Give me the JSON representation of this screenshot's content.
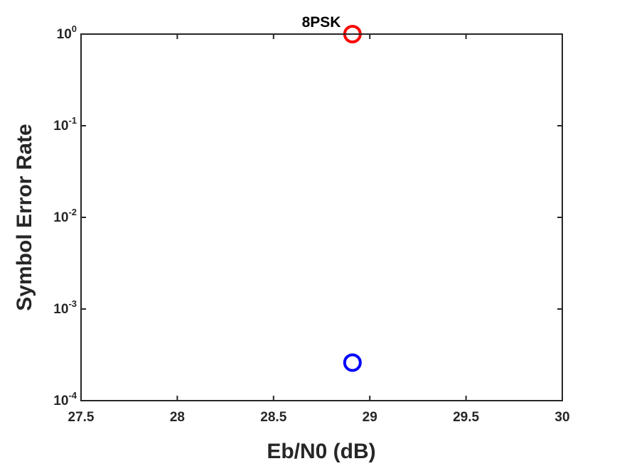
{
  "chart_data": {
    "type": "scatter",
    "title": "8PSK",
    "xlabel": "Eb/N0 (dB)",
    "ylabel": "Symbol Error Rate",
    "xlim": [
      27.5,
      30
    ],
    "ylim": [
      0.0001,
      1
    ],
    "yscale": "log",
    "grid": false,
    "x_ticks": [
      27.5,
      28,
      28.5,
      29,
      29.5,
      30
    ],
    "x_tick_labels": [
      "27.5",
      "28",
      "28.5",
      "29",
      "29.5",
      "30"
    ],
    "y_ticks": [
      0.0001,
      0.001,
      0.01,
      0.1,
      1
    ],
    "y_tick_labels": [
      {
        "base": "10",
        "exp": "-4"
      },
      {
        "base": "10",
        "exp": "-3"
      },
      {
        "base": "10",
        "exp": "-2"
      },
      {
        "base": "10",
        "exp": "-1"
      },
      {
        "base": "10",
        "exp": "0"
      }
    ],
    "series": [
      {
        "color": "#ff0000",
        "marker": "circle",
        "x": [
          28.91
        ],
        "y": [
          1.0
        ]
      },
      {
        "color": "#0000ff",
        "marker": "circle",
        "x": [
          28.91
        ],
        "y": [
          0.00026
        ]
      }
    ]
  }
}
